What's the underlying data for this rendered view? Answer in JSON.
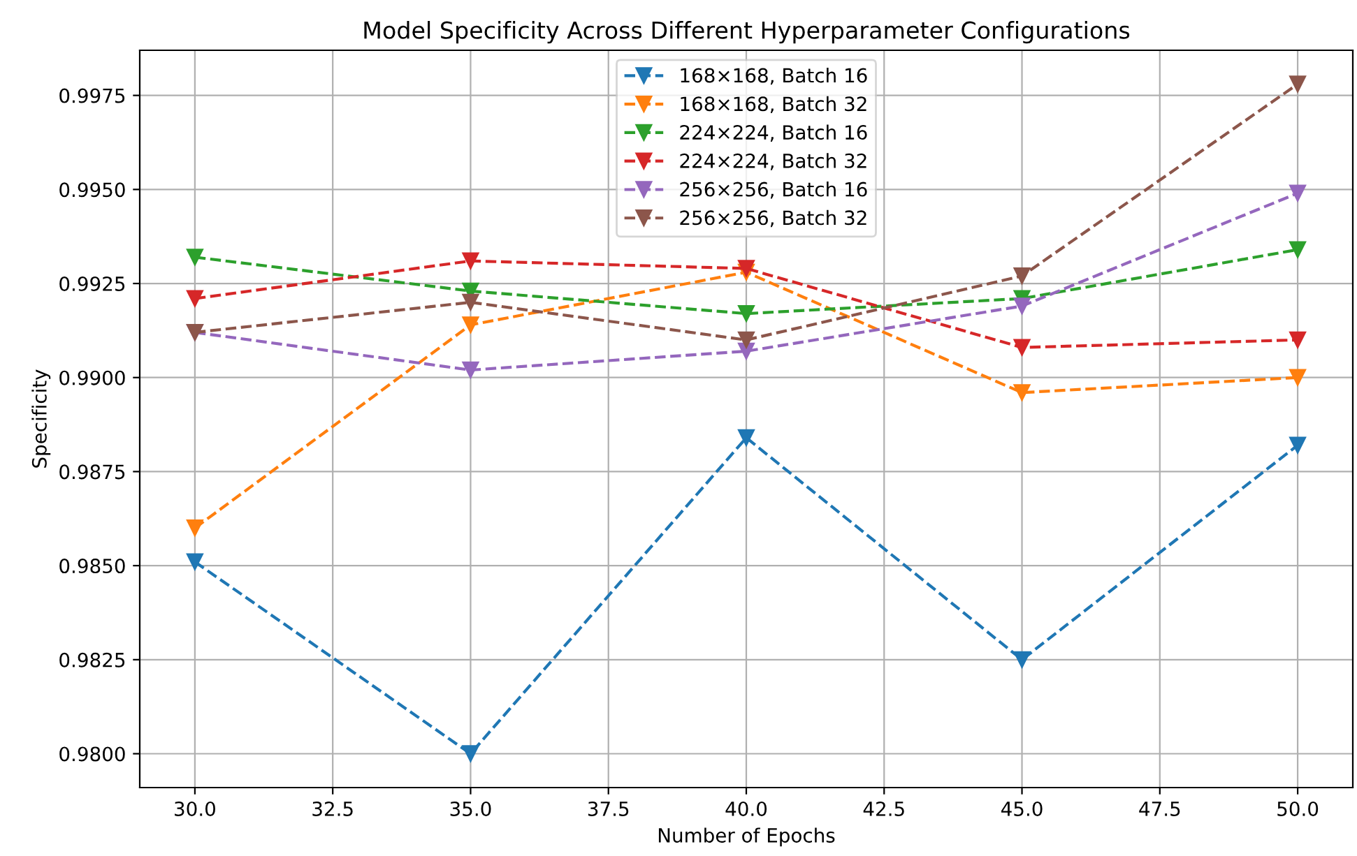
{
  "chart_data": {
    "type": "line",
    "title": "Model Specificity Across Different Hyperparameter Configurations",
    "xlabel": "Number of Epochs",
    "ylabel": "Specificity",
    "x": [
      30,
      35,
      40,
      45,
      50
    ],
    "series": [
      {
        "name": "168×168, Batch 16",
        "color": "#1f77b4",
        "values": [
          0.9851,
          0.98,
          0.9884,
          0.9825,
          0.9882
        ]
      },
      {
        "name": "168×168, Batch 32",
        "color": "#ff7f0e",
        "values": [
          0.986,
          0.9914,
          0.9928,
          0.9896,
          0.99
        ]
      },
      {
        "name": "224×224, Batch 16",
        "color": "#2ca02c",
        "values": [
          0.9932,
          0.9923,
          0.9917,
          0.9921,
          0.9934
        ]
      },
      {
        "name": "224×224, Batch 32",
        "color": "#d62728",
        "values": [
          0.9921,
          0.9931,
          0.9929,
          0.9908,
          0.991
        ]
      },
      {
        "name": "256×256, Batch 16",
        "color": "#9467bd",
        "values": [
          0.9912,
          0.9902,
          0.9907,
          0.9919,
          0.9949
        ]
      },
      {
        "name": "256×256, Batch 32",
        "color": "#8c564b",
        "values": [
          0.9912,
          0.992,
          0.991,
          0.9927,
          0.9978
        ]
      }
    ],
    "xlim": [
      29,
      51
    ],
    "xticks": [
      {
        "value": 30,
        "label": "30.0"
      },
      {
        "value": 32.5,
        "label": "32.5"
      },
      {
        "value": 35,
        "label": "35.0"
      },
      {
        "value": 37.5,
        "label": "37.5"
      },
      {
        "value": 40,
        "label": "40.0"
      },
      {
        "value": 42.5,
        "label": "42.5"
      },
      {
        "value": 45,
        "label": "45.0"
      },
      {
        "value": 47.5,
        "label": "47.5"
      },
      {
        "value": 50,
        "label": "50.0"
      }
    ],
    "ylim": [
      0.9791,
      0.9987
    ],
    "yticks": [
      {
        "value": 0.98,
        "label": "0.9800"
      },
      {
        "value": 0.9825,
        "label": "0.9825"
      },
      {
        "value": 0.985,
        "label": "0.9850"
      },
      {
        "value": 0.9875,
        "label": "0.9875"
      },
      {
        "value": 0.99,
        "label": "0.9900"
      },
      {
        "value": 0.9925,
        "label": "0.9925"
      },
      {
        "value": 0.995,
        "label": "0.9950"
      },
      {
        "value": 0.9975,
        "label": "0.9975"
      }
    ],
    "grid": true,
    "legend": "top",
    "marker": "triangle",
    "line_style": "dashed"
  }
}
